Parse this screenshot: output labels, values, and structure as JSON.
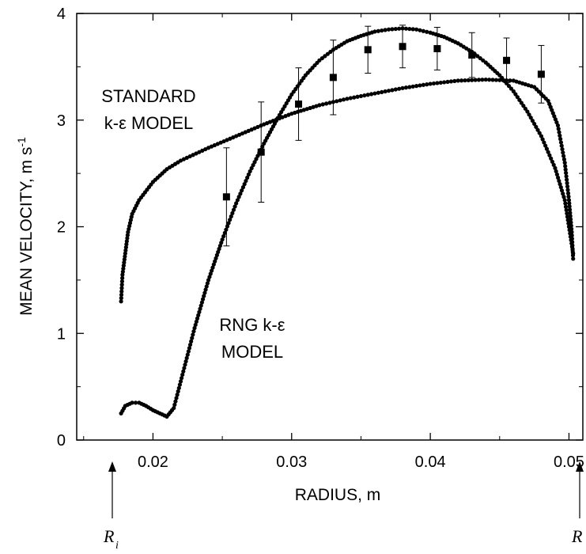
{
  "chart_data": {
    "type": "scatter",
    "xlabel": "RADIUS, m",
    "ylabel": "MEAN VELOCITY, m s",
    "ylabel_superscript": "-1",
    "xlim": [
      0.0145,
      0.051
    ],
    "ylim": [
      0,
      4
    ],
    "x_ticks": [
      "0.02",
      "0.03",
      "0.04",
      "0.05"
    ],
    "y_ticks": [
      "0",
      "1",
      "2",
      "3",
      "4"
    ],
    "grid": false,
    "annotations": {
      "standard_line1": "STANDARD",
      "standard_line2": "k-ε MODEL",
      "rng_line1": "RNG k-ε",
      "rng_line2": "MODEL",
      "inner_radius_main": "R",
      "inner_radius_sub": "i",
      "outer_radius_main": "R"
    },
    "series": [
      {
        "points": [
          [
            0.0177,
            1.3
          ],
          [
            0.0178,
            1.55
          ],
          [
            0.018,
            1.75
          ],
          [
            0.0182,
            1.95
          ],
          [
            0.0185,
            2.12
          ],
          [
            0.019,
            2.25
          ],
          [
            0.02,
            2.42
          ],
          [
            0.021,
            2.54
          ],
          [
            0.022,
            2.62
          ],
          [
            0.024,
            2.74
          ],
          [
            0.026,
            2.85
          ],
          [
            0.028,
            2.96
          ],
          [
            0.03,
            3.06
          ],
          [
            0.032,
            3.14
          ],
          [
            0.034,
            3.2
          ],
          [
            0.036,
            3.25
          ],
          [
            0.038,
            3.3
          ],
          [
            0.04,
            3.34
          ],
          [
            0.042,
            3.37
          ],
          [
            0.044,
            3.38
          ],
          [
            0.046,
            3.37
          ],
          [
            0.0475,
            3.31
          ],
          [
            0.0485,
            3.18
          ],
          [
            0.0492,
            2.95
          ],
          [
            0.0497,
            2.6
          ],
          [
            0.05,
            2.25
          ],
          [
            0.0502,
            1.95
          ],
          [
            0.0503,
            1.7
          ]
        ]
      },
      {
        "points": [
          [
            0.0177,
            0.25
          ],
          [
            0.018,
            0.32
          ],
          [
            0.0185,
            0.35
          ],
          [
            0.019,
            0.35
          ],
          [
            0.0195,
            0.32
          ],
          [
            0.02,
            0.28
          ],
          [
            0.0205,
            0.25
          ],
          [
            0.021,
            0.22
          ],
          [
            0.0215,
            0.3
          ],
          [
            0.022,
            0.55
          ],
          [
            0.023,
            1.05
          ],
          [
            0.024,
            1.5
          ],
          [
            0.025,
            1.88
          ],
          [
            0.026,
            2.22
          ],
          [
            0.027,
            2.52
          ],
          [
            0.028,
            2.78
          ],
          [
            0.029,
            3.02
          ],
          [
            0.03,
            3.24
          ],
          [
            0.031,
            3.42
          ],
          [
            0.032,
            3.56
          ],
          [
            0.033,
            3.66
          ],
          [
            0.034,
            3.74
          ],
          [
            0.035,
            3.79
          ],
          [
            0.036,
            3.83
          ],
          [
            0.037,
            3.85
          ],
          [
            0.038,
            3.86
          ],
          [
            0.039,
            3.85
          ],
          [
            0.04,
            3.82
          ],
          [
            0.041,
            3.78
          ],
          [
            0.042,
            3.72
          ],
          [
            0.043,
            3.64
          ],
          [
            0.044,
            3.54
          ],
          [
            0.045,
            3.42
          ],
          [
            0.046,
            3.27
          ],
          [
            0.047,
            3.08
          ],
          [
            0.048,
            2.85
          ],
          [
            0.049,
            2.55
          ],
          [
            0.0497,
            2.25
          ],
          [
            0.05,
            2.0
          ],
          [
            0.0503,
            1.75
          ]
        ]
      },
      {
        "x": [
          0.0253,
          0.0278,
          0.0305,
          0.033,
          0.0355,
          0.038,
          0.0405,
          0.043,
          0.0455,
          0.048
        ],
        "y": [
          2.28,
          2.7,
          3.15,
          3.4,
          3.66,
          3.69,
          3.67,
          3.61,
          3.56,
          3.43
        ],
        "err": [
          0.46,
          0.47,
          0.34,
          0.35,
          0.22,
          0.2,
          0.2,
          0.21,
          0.21,
          0.27
        ]
      }
    ]
  }
}
